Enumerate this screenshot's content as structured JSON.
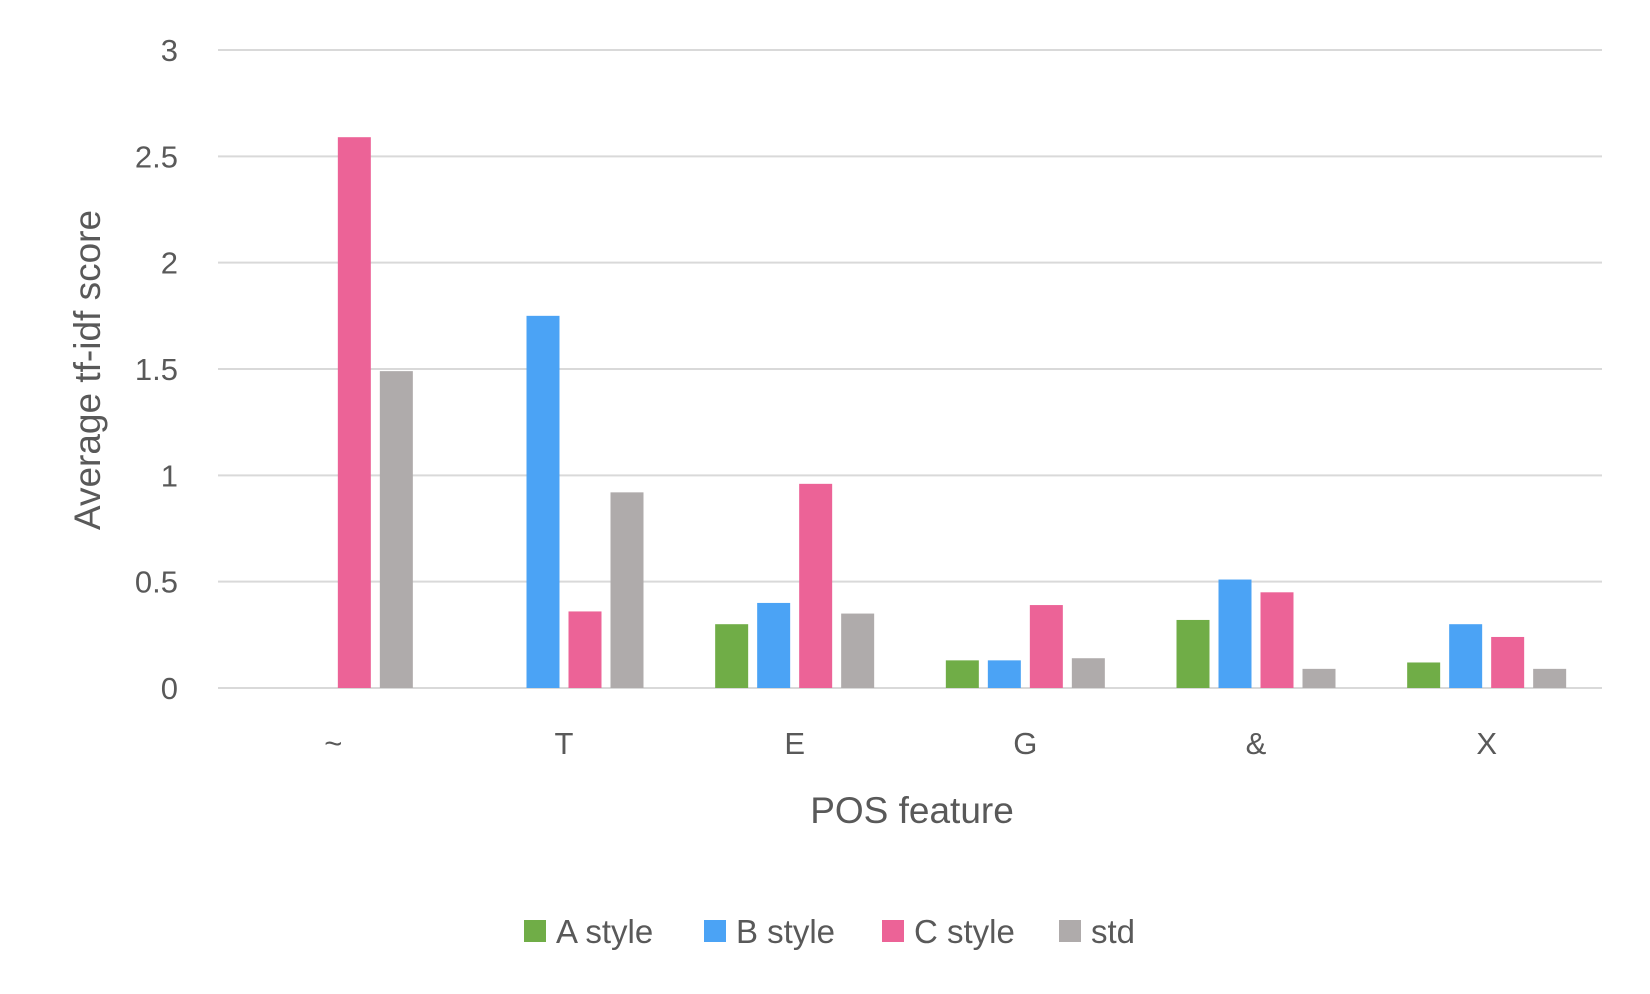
{
  "chart_data": {
    "type": "bar",
    "title": "",
    "xlabel": "POS feature",
    "ylabel": "Average tf-idf score",
    "categories": [
      "~",
      "T",
      "E",
      "G",
      "&",
      "X"
    ],
    "series": [
      {
        "name": "A style",
        "color": "#70AD47",
        "values": [
          0,
          0,
          0.3,
          0.13,
          0.32,
          0.12
        ]
      },
      {
        "name": "B style",
        "color": "#4BA3F5",
        "values": [
          0,
          1.75,
          0.4,
          0.13,
          0.51,
          0.3
        ]
      },
      {
        "name": "C style",
        "color": "#EC6397",
        "values": [
          2.59,
          0.36,
          0.96,
          0.39,
          0.45,
          0.24
        ]
      },
      {
        "name": "std",
        "color": "#AFABAB",
        "values": [
          1.49,
          0.92,
          0.35,
          0.14,
          0.09,
          0.09
        ]
      }
    ],
    "ylim": [
      0,
      3
    ],
    "yticks": [
      "0",
      "0.5",
      "1",
      "1.5",
      "2",
      "2.5",
      "3"
    ],
    "grid": true,
    "legend_position": "bottom"
  }
}
